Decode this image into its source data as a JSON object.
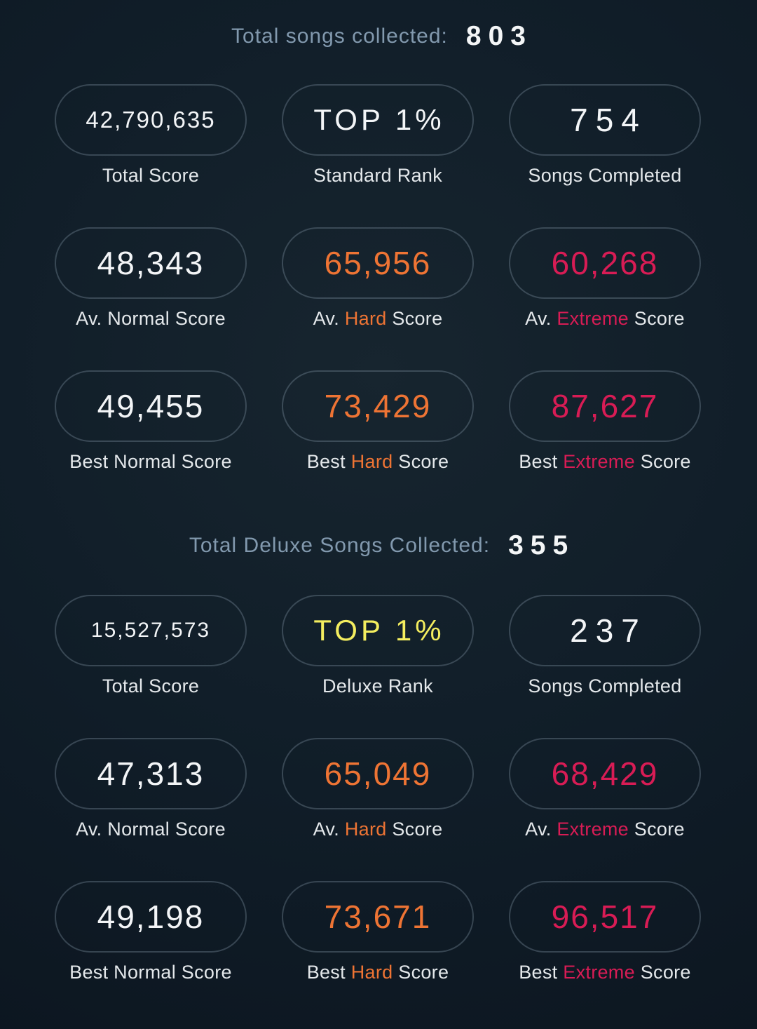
{
  "colors": {
    "background_center": "#17252f",
    "background_edge": "#0b141e",
    "pill_border": "rgba(148,170,186,0.30)",
    "value_white": "#f3f5f7",
    "value_orange": "#ee7434",
    "value_extreme": "#d81c55",
    "value_yellow": "#f4ee5f",
    "title_muted": "#8299ae",
    "label_text": "#e4e8eb"
  },
  "section_standard": {
    "title": "Total songs collected:",
    "count": "803",
    "cells": [
      {
        "value": "42,790,635",
        "label_pre": "Total Score",
        "label_mid": "",
        "label_post": ""
      },
      {
        "value": "TOP 1%",
        "label_pre": "Standard Rank",
        "label_mid": "",
        "label_post": ""
      },
      {
        "value": "754",
        "label_pre": "Songs Completed",
        "label_mid": "",
        "label_post": ""
      },
      {
        "value": "48,343",
        "label_pre": "Av. Normal Score",
        "label_mid": "",
        "label_post": ""
      },
      {
        "value": "65,956",
        "label_pre": "Av. ",
        "label_mid": "Hard",
        "label_post": " Score"
      },
      {
        "value": "60,268",
        "label_pre": "Av. ",
        "label_mid": "Extreme",
        "label_post": " Score"
      },
      {
        "value": "49,455",
        "label_pre": "Best Normal Score",
        "label_mid": "",
        "label_post": ""
      },
      {
        "value": "73,429",
        "label_pre": "Best ",
        "label_mid": "Hard",
        "label_post": " Score"
      },
      {
        "value": "87,627",
        "label_pre": "Best ",
        "label_mid": "Extreme",
        "label_post": " Score"
      }
    ]
  },
  "section_deluxe": {
    "title": "Total Deluxe Songs Collected:",
    "count": "355",
    "cells": [
      {
        "value": "15,527,573",
        "label_pre": "Total Score",
        "label_mid": "",
        "label_post": ""
      },
      {
        "value": "TOP 1%",
        "label_pre": "Deluxe Rank",
        "label_mid": "",
        "label_post": ""
      },
      {
        "value": "237",
        "label_pre": "Songs Completed",
        "label_mid": "",
        "label_post": ""
      },
      {
        "value": "47,313",
        "label_pre": "Av. Normal Score",
        "label_mid": "",
        "label_post": ""
      },
      {
        "value": "65,049",
        "label_pre": "Av. ",
        "label_mid": "Hard",
        "label_post": " Score"
      },
      {
        "value": "68,429",
        "label_pre": "Av. ",
        "label_mid": "Extreme",
        "label_post": " Score"
      },
      {
        "value": "49,198",
        "label_pre": "Best Normal Score",
        "label_mid": "",
        "label_post": ""
      },
      {
        "value": "73,671",
        "label_pre": "Best ",
        "label_mid": "Hard",
        "label_post": " Score"
      },
      {
        "value": "96,517",
        "label_pre": "Best ",
        "label_mid": "Extreme",
        "label_post": " Score"
      }
    ]
  }
}
